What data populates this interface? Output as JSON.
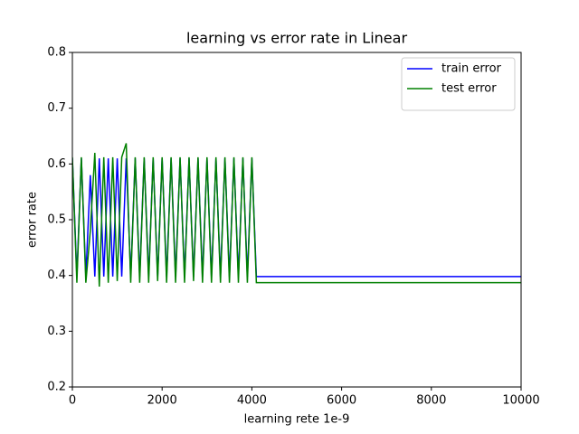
{
  "chart_data": {
    "type": "line",
    "title": "learning vs error rate in Linear",
    "xlabel": "learning rete 1e-9",
    "ylabel": "error rate",
    "x": [
      0,
      100,
      200,
      300,
      400,
      500,
      600,
      700,
      800,
      900,
      1000,
      1100,
      1200,
      1300,
      1400,
      1500,
      1600,
      1700,
      1800,
      1900,
      2000,
      2100,
      2200,
      2300,
      2400,
      2500,
      2600,
      2700,
      2800,
      2900,
      3000,
      3100,
      3200,
      3300,
      3400,
      3500,
      3600,
      3700,
      3800,
      3900,
      4000,
      4100,
      10000
    ],
    "series": [
      {
        "name": "train error",
        "color": "#0000ff",
        "values": [
          0.61,
          0.398,
          0.61,
          0.398,
          0.58,
          0.398,
          0.61,
          0.398,
          0.61,
          0.398,
          0.61,
          0.398,
          0.61,
          0.398,
          0.61,
          0.398,
          0.61,
          0.398,
          0.61,
          0.398,
          0.61,
          0.398,
          0.61,
          0.398,
          0.61,
          0.398,
          0.61,
          0.398,
          0.61,
          0.398,
          0.61,
          0.398,
          0.61,
          0.398,
          0.61,
          0.398,
          0.61,
          0.398,
          0.61,
          0.398,
          0.61,
          0.398,
          0.398
        ]
      },
      {
        "name": "test error",
        "color": "#008000",
        "values": [
          0.612,
          0.387,
          0.612,
          0.387,
          0.48,
          0.62,
          0.38,
          0.612,
          0.387,
          0.612,
          0.39,
          0.612,
          0.637,
          0.387,
          0.612,
          0.387,
          0.612,
          0.387,
          0.612,
          0.39,
          0.612,
          0.387,
          0.612,
          0.387,
          0.612,
          0.387,
          0.612,
          0.39,
          0.612,
          0.387,
          0.612,
          0.387,
          0.612,
          0.387,
          0.612,
          0.387,
          0.612,
          0.387,
          0.612,
          0.387,
          0.612,
          0.387,
          0.387
        ]
      }
    ],
    "xlim": [
      0,
      10000
    ],
    "xticks": [
      0,
      2000,
      4000,
      6000,
      8000,
      10000
    ],
    "ylim": [
      0.2,
      0.8
    ],
    "yticks": [
      0.2,
      0.3,
      0.4,
      0.5,
      0.6,
      0.7,
      0.8
    ],
    "grid": false,
    "legend": "upper right"
  }
}
